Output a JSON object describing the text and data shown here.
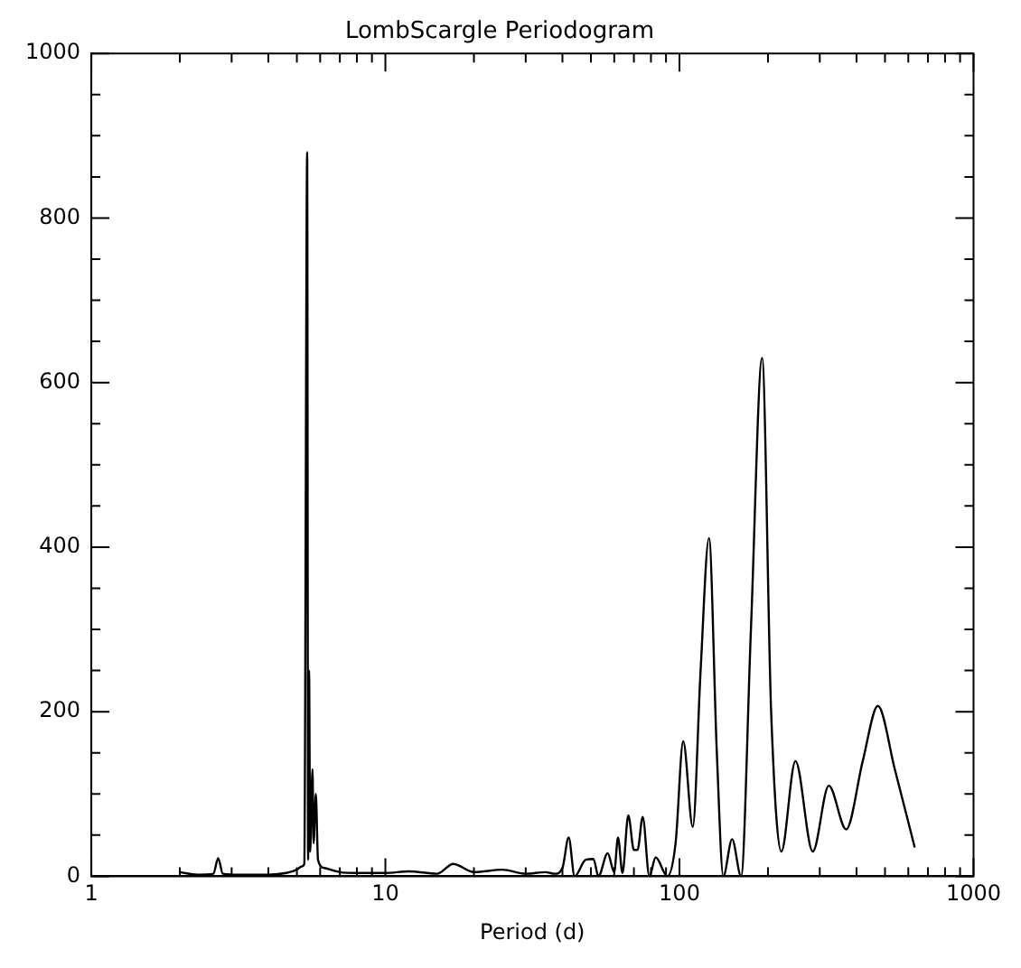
{
  "chart_data": {
    "type": "line",
    "title": "LombScargle Periodogram",
    "xlabel": "Period (d)",
    "log": "x",
    "grid": false,
    "legend": false,
    "marker": "none",
    "line_style": "solid",
    "xlim": [
      1,
      1000
    ],
    "xticks": [
      1,
      {
        "value": 2,
        "label": null
      },
      {
        "value": 3,
        "label": null
      },
      {
        "value": 4,
        "label": null
      },
      {
        "value": 5,
        "label": null
      },
      {
        "value": 6,
        "label": null
      },
      {
        "value": 7,
        "label": null
      },
      {
        "value": 8,
        "label": null
      },
      {
        "value": 9,
        "label": null
      },
      10,
      {
        "value": 20,
        "label": null
      },
      {
        "value": 30,
        "label": null
      },
      {
        "value": 40,
        "label": null
      },
      {
        "value": 50,
        "label": null
      },
      {
        "value": 60,
        "label": null
      },
      {
        "value": 70,
        "label": null
      },
      {
        "value": 80,
        "label": null
      },
      {
        "value": 90,
        "label": null
      },
      100,
      {
        "value": 200,
        "label": null
      },
      {
        "value": 300,
        "label": null
      },
      {
        "value": 400,
        "label": null
      },
      {
        "value": 500,
        "label": null
      },
      {
        "value": 600,
        "label": null
      },
      {
        "value": 700,
        "label": null
      },
      {
        "value": 800,
        "label": null
      },
      {
        "value": 900,
        "label": null
      },
      1000
    ],
    "ylim": [
      0,
      1000
    ],
    "yticks": [
      0,
      {
        "value": 50,
        "label": null
      },
      {
        "value": 100,
        "label": null
      },
      {
        "value": 150,
        "label": null
      },
      200,
      {
        "value": 250,
        "label": null
      },
      {
        "value": 300,
        "label": null
      },
      {
        "value": 350,
        "label": null
      },
      400,
      {
        "value": 450,
        "label": null
      },
      {
        "value": 500,
        "label": null
      },
      {
        "value": 550,
        "label": null
      },
      600,
      {
        "value": 650,
        "label": null
      },
      {
        "value": 700,
        "label": null
      },
      {
        "value": 750,
        "label": null
      },
      800,
      {
        "value": 850,
        "label": null
      },
      {
        "value": 900,
        "label": null
      },
      {
        "value": 950,
        "label": null
      },
      1000
    ],
    "series": [
      {
        "color": "#000000",
        "x": [
          2,
          2.3,
          2.6,
          2.7,
          2.8,
          3.2,
          4,
          4.6,
          5,
          5.2,
          5.3,
          5.42,
          5.46,
          5.5,
          5.55,
          5.65,
          5.7,
          5.8,
          5.9,
          6.2,
          7,
          8,
          10,
          12,
          15,
          17,
          20,
          25,
          30,
          35,
          37.7,
          40,
          42,
          44,
          48,
          51,
          53,
          57,
          60,
          61.8,
          64,
          67,
          70,
          72,
          75,
          79,
          83,
          91,
          97,
          103,
          111,
          118,
          126,
          134,
          141,
          151,
          162,
          175,
          191,
          205,
          222,
          248,
          284,
          322,
          369,
          420,
          473,
          540,
          631
        ],
        "values": [
          5,
          2,
          3,
          22,
          3,
          2,
          2,
          4,
          8,
          12,
          15,
          880,
          20,
          250,
          30,
          130,
          40,
          100,
          20,
          10,
          5,
          4,
          4,
          6,
          3,
          15,
          5,
          8,
          3,
          5,
          3,
          10,
          47,
          0,
          20,
          21,
          0,
          28,
          5,
          47,
          4,
          74,
          32,
          32,
          72,
          0,
          23,
          0,
          40,
          164,
          60,
          250,
          411,
          150,
          0,
          45,
          0,
          300,
          630,
          200,
          30,
          140,
          30,
          110,
          57,
          140,
          207,
          130,
          35
        ]
      }
    ]
  }
}
